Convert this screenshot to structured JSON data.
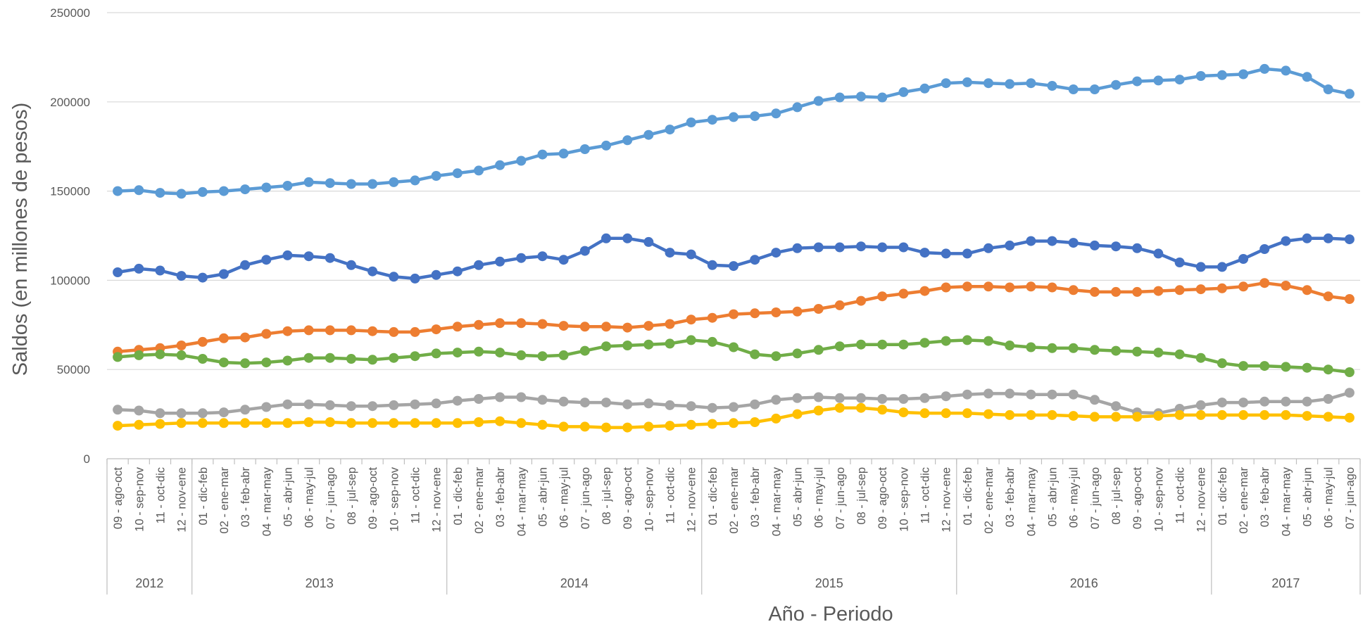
{
  "chart_data": {
    "type": "line",
    "title": "",
    "xlabel": "Año - Periodo",
    "ylabel": "Saldos (en millones de pesos)",
    "ylim": [
      0,
      250000
    ],
    "yticks": [
      0,
      50000,
      100000,
      150000,
      200000,
      250000
    ],
    "ytick_labels": [
      "0",
      "50000",
      "100000",
      "150000",
      "200000",
      "250000"
    ],
    "grid": "horizontal",
    "legend": "none",
    "categories": [
      "09 - ago-oct",
      "10 - sep-nov",
      "11 - oct-dic",
      "12 - nov-ene",
      "01 - dic-feb",
      "02 - ene-mar",
      "03 - feb-abr",
      "04 - mar-may",
      "05 - abr-jun",
      "06 - may-jul",
      "07 - jun-ago",
      "08 - jul-sep",
      "09 - ago-oct",
      "10 - sep-nov",
      "11 - oct-dic",
      "12 - nov-ene",
      "01 - dic-feb",
      "02 - ene-mar",
      "03 - feb-abr",
      "04 - mar-may",
      "05 - abr-jun",
      "06 - may-jul",
      "07 - jun-ago",
      "08 - jul-sep",
      "09 - ago-oct",
      "10 - sep-nov",
      "11 - oct-dic",
      "12 - nov-ene",
      "01 - dic-feb",
      "02 - ene-mar",
      "03 - feb-abr",
      "04 - mar-may",
      "05 - abr-jun",
      "06 - may-jul",
      "07 - jun-ago",
      "08 - jul-sep",
      "09 - ago-oct",
      "10 - sep-nov",
      "11 - oct-dic",
      "12 - nov-ene",
      "01 - dic-feb",
      "02 - ene-mar",
      "03 - feb-abr",
      "04 - mar-may",
      "05 - abr-jun",
      "06 - may-jul",
      "07 - jun-ago",
      "08 - jul-sep",
      "09 - ago-oct",
      "10 - sep-nov",
      "11 - oct-dic",
      "12 - nov-ene",
      "01 - dic-feb",
      "02 - ene-mar",
      "03 - feb-abr",
      "04 - mar-may",
      "05 - abr-jun",
      "06 - may-jul",
      "07 - jun-ago"
    ],
    "year_groups": [
      {
        "label": "2012",
        "count": 4
      },
      {
        "label": "2013",
        "count": 12
      },
      {
        "label": "2014",
        "count": 12
      },
      {
        "label": "2015",
        "count": 12
      },
      {
        "label": "2016",
        "count": 12
      },
      {
        "label": "2017",
        "count": 7
      }
    ],
    "series": [
      {
        "color": "#5b9bd5",
        "values": [
          150000,
          150500,
          149000,
          148500,
          149500,
          150000,
          151000,
          152000,
          153000,
          155000,
          154500,
          154000,
          154000,
          155000,
          156000,
          158500,
          160000,
          161500,
          164500,
          167000,
          170500,
          171000,
          173500,
          175500,
          178500,
          181500,
          184500,
          188500,
          190000,
          191500,
          192000,
          193500,
          197000,
          200500,
          202500,
          203000,
          202500,
          205500,
          207500,
          210500,
          211000,
          210500,
          210000,
          210500,
          209000,
          207000,
          207000,
          209500,
          211500,
          212000,
          212500,
          214500,
          215000,
          215500,
          218500,
          217500,
          214000,
          207000,
          204500
        ]
      },
      {
        "color": "#4472c4",
        "values": [
          104500,
          106500,
          105500,
          102500,
          101500,
          103500,
          108500,
          111500,
          114000,
          113500,
          112500,
          108500,
          105000,
          102000,
          101000,
          103000,
          105000,
          108500,
          110500,
          112500,
          113500,
          111500,
          116500,
          123500,
          123500,
          121500,
          115500,
          114500,
          108500,
          108000,
          111500,
          115500,
          118000,
          118500,
          118500,
          119000,
          118500,
          118500,
          115500,
          115000,
          115000,
          118000,
          119500,
          122000,
          122000,
          121000,
          119500,
          119000,
          118000,
          115000,
          110000,
          107500,
          107500,
          112000,
          117500,
          122000,
          123500,
          123500,
          123000
        ]
      },
      {
        "color": "#ed7d31",
        "values": [
          60000,
          61000,
          62000,
          63500,
          65500,
          67500,
          68000,
          70000,
          71500,
          72000,
          72000,
          72000,
          71500,
          71000,
          71000,
          72500,
          74000,
          75000,
          76000,
          76000,
          75500,
          74500,
          74000,
          74000,
          73500,
          74500,
          75500,
          78000,
          79000,
          81000,
          81500,
          82000,
          82500,
          84000,
          86000,
          88500,
          91000,
          92500,
          94000,
          96000,
          96500,
          96500,
          96000,
          96500,
          96000,
          94500,
          93500,
          93500,
          93500,
          94000,
          94500,
          95000,
          95500,
          96500,
          98500,
          97000,
          94500,
          91000,
          89500
        ]
      },
      {
        "color": "#70ad47",
        "values": [
          57000,
          58000,
          58500,
          58000,
          56000,
          54000,
          53500,
          54000,
          55000,
          56500,
          56500,
          56000,
          55500,
          56500,
          57500,
          59000,
          59500,
          60000,
          59500,
          58000,
          57500,
          58000,
          60500,
          63000,
          63500,
          64000,
          64500,
          66500,
          65500,
          62500,
          58500,
          57500,
          59000,
          61000,
          63000,
          64000,
          64000,
          64000,
          65000,
          66000,
          66500,
          66000,
          63500,
          62500,
          62000,
          62000,
          61000,
          60500,
          60000,
          59500,
          58500,
          56500,
          53500,
          52000,
          52000,
          51500,
          51000,
          50000,
          48500
        ]
      },
      {
        "color": "#a5a5a5",
        "values": [
          27500,
          27000,
          25500,
          25500,
          25500,
          26000,
          27500,
          29000,
          30500,
          30500,
          30000,
          29500,
          29500,
          30000,
          30500,
          31000,
          32500,
          33500,
          34500,
          34500,
          33000,
          32000,
          31500,
          31500,
          30500,
          31000,
          30000,
          29500,
          28500,
          29000,
          30500,
          33000,
          34000,
          34500,
          34000,
          34000,
          33500,
          33500,
          34000,
          35000,
          36000,
          36500,
          36500,
          36000,
          36000,
          36000,
          33000,
          29500,
          26000,
          25500,
          28000,
          30000,
          31500,
          31500,
          32000,
          32000,
          32000,
          33500,
          37000
        ]
      },
      {
        "color": "#ffc000",
        "values": [
          18500,
          19000,
          19500,
          20000,
          20000,
          20000,
          20000,
          20000,
          20000,
          20500,
          20500,
          20000,
          20000,
          20000,
          20000,
          20000,
          20000,
          20500,
          21000,
          20000,
          19000,
          18000,
          18000,
          17500,
          17500,
          18000,
          18500,
          19000,
          19500,
          20000,
          20500,
          22500,
          25000,
          27000,
          28500,
          28500,
          27500,
          26000,
          25500,
          25500,
          25500,
          25000,
          24500,
          24500,
          24500,
          24000,
          23500,
          23500,
          23500,
          24000,
          24500,
          24500,
          24500,
          24500,
          24500,
          24500,
          24000,
          23500,
          23000
        ]
      }
    ]
  }
}
